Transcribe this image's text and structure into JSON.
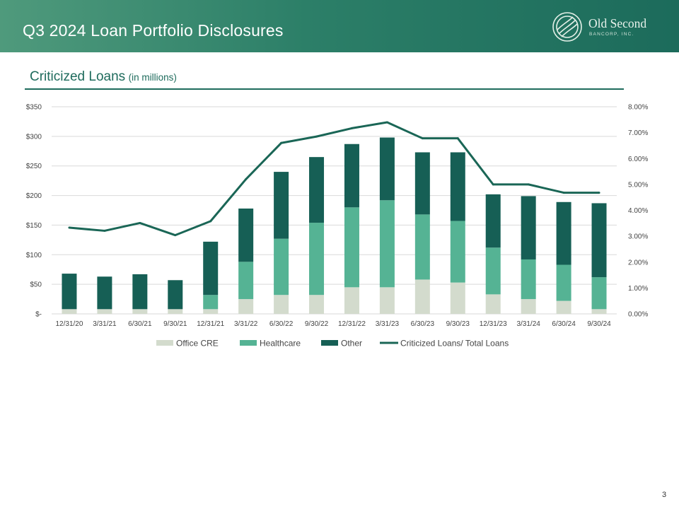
{
  "header": {
    "title": "Q3 2024 Loan Portfolio Disclosures",
    "logo_name": "Old Second",
    "logo_sub": "BANCORP, INC."
  },
  "section": {
    "title": "Criticized Loans",
    "unit": "(in millions)"
  },
  "page_number": "3",
  "colors": {
    "header_start": "#4f9a7c",
    "header_end": "#1c6b5b",
    "accent": "#1e6b5c",
    "office_cre": "#d3dbcd",
    "healthcare": "#55b394",
    "other": "#165f55",
    "ratio_line": "#1a6656"
  },
  "chart_data": {
    "type": "bar",
    "stacked": true,
    "categories": [
      "12/31/20",
      "3/31/21",
      "6/30/21",
      "9/30/21",
      "12/31/21",
      "3/31/22",
      "6/30/22",
      "9/30/22",
      "12/31/22",
      "3/31/23",
      "6/30/23",
      "9/30/23",
      "12/31/23",
      "3/31/24",
      "6/30/24",
      "9/30/24"
    ],
    "series": [
      {
        "name": "Office CRE",
        "type": "bar",
        "axis": "left",
        "color": "#d3dbcd",
        "values": [
          8,
          8,
          8,
          8,
          8,
          25,
          32,
          32,
          45,
          45,
          58,
          53,
          33,
          25,
          22,
          8
        ]
      },
      {
        "name": "Healthcare",
        "type": "bar",
        "axis": "left",
        "color": "#55b394",
        "values": [
          0,
          0,
          0,
          0,
          24,
          63,
          95,
          122,
          135,
          147,
          110,
          104,
          79,
          67,
          61,
          54
        ]
      },
      {
        "name": "Other",
        "type": "bar",
        "axis": "left",
        "color": "#165f55",
        "values": [
          60,
          55,
          59,
          49,
          90,
          90,
          113,
          111,
          107,
          106,
          105,
          116,
          90,
          107,
          106,
          125
        ]
      },
      {
        "name": "Criticized Loans/ Total Loans",
        "type": "line",
        "axis": "right",
        "color": "#1a6656",
        "values": [
          3.33,
          3.21,
          3.51,
          3.04,
          3.58,
          5.2,
          6.6,
          6.85,
          7.17,
          7.4,
          6.78,
          6.78,
          5.0,
          5.0,
          4.68,
          4.68
        ]
      }
    ],
    "left_axis": {
      "min": 0,
      "max": 350,
      "ticks": [
        0,
        50,
        100,
        150,
        200,
        250,
        300,
        350
      ],
      "tick_labels": [
        "$-",
        "$50",
        "$100",
        "$150",
        "$200",
        "$250",
        "$300",
        "$350"
      ]
    },
    "right_axis": {
      "min": 0,
      "max": 8,
      "ticks": [
        0,
        1,
        2,
        3,
        4,
        5,
        6,
        7,
        8
      ],
      "tick_labels": [
        "0.00%",
        "1.00%",
        "2.00%",
        "3.00%",
        "4.00%",
        "5.00%",
        "6.00%",
        "7.00%",
        "8.00%"
      ]
    },
    "grid": true,
    "legend_position": "bottom"
  }
}
